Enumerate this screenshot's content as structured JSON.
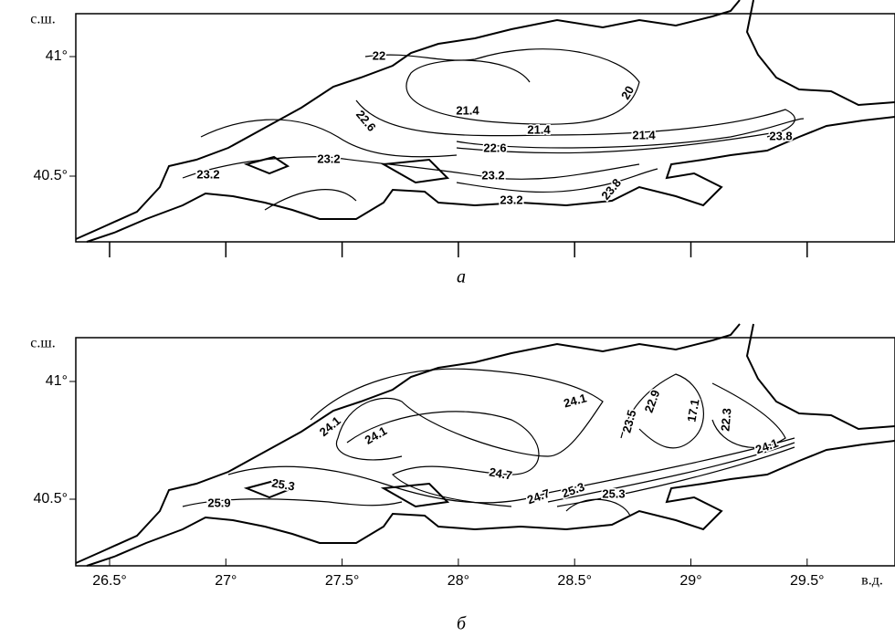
{
  "panels": [
    {
      "lat_unit": "с.ш.",
      "lat_ticks": [
        "41°",
        "40.5°"
      ],
      "contour_labels": [
        "22",
        "21.4",
        "20",
        "22.6",
        "21.4",
        "21.4",
        "23.8",
        "22.6",
        "23.2",
        "23.2",
        "23.2",
        "23.2",
        "23.8"
      ],
      "caption": "а"
    },
    {
      "lat_unit": "с.ш.",
      "lat_ticks": [
        "41°",
        "40.5°"
      ],
      "contour_labels": [
        "24.1",
        "23.5",
        "22.9",
        "17.1",
        "22.3",
        "24.1",
        "24.1",
        "24.7",
        "25.3",
        "24.7",
        "25.3",
        "25.3",
        "25.9",
        "24.1"
      ],
      "lon_ticks": [
        "26.5°",
        "27°",
        "27.5°",
        "28°",
        "28.5°",
        "29°",
        "29.5°"
      ],
      "lon_unit": "в.д.",
      "caption": "б"
    }
  ]
}
